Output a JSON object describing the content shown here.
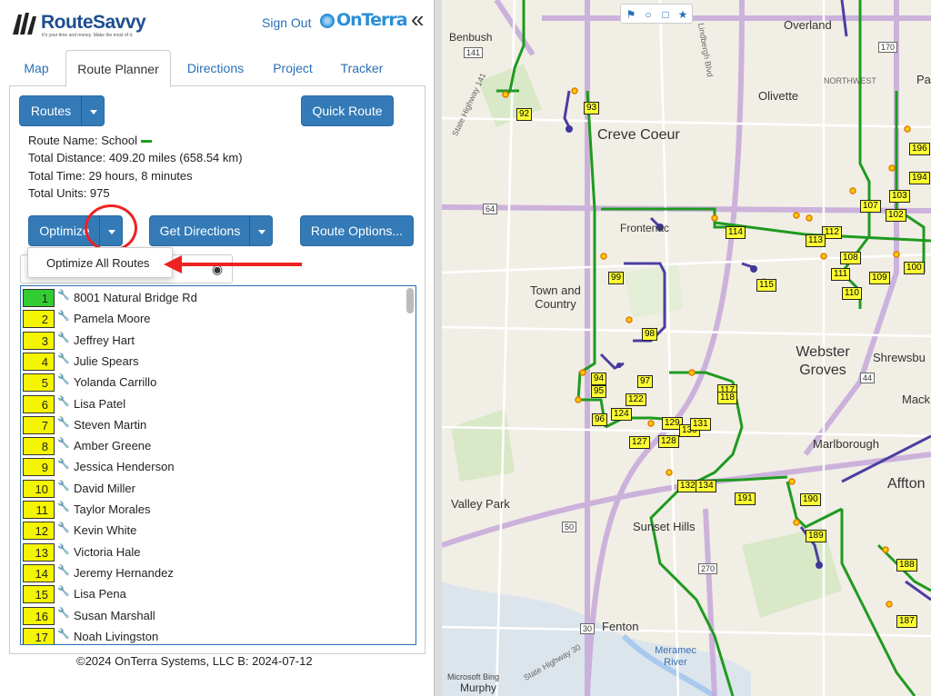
{
  "header": {
    "logo_text": "RouteSavvy",
    "logo_tagline": "It's your time and money. Make the most of it.",
    "signout_label": "Sign Out",
    "partner_logo": "OnTerra",
    "collapse_icon": "«"
  },
  "tabs": [
    {
      "label": "Map"
    },
    {
      "label": "Route Planner"
    },
    {
      "label": "Directions"
    },
    {
      "label": "Project"
    },
    {
      "label": "Tracker"
    }
  ],
  "active_tab": "Route Planner",
  "toolbar": {
    "routes_label": "Routes",
    "quick_route_label": "Quick Route",
    "optimize_label": "Optimize",
    "get_directions_label": "Get Directions",
    "route_options_label": "Route Options..."
  },
  "route_info": {
    "name": "Route Name: School",
    "distance": "Total Distance: 409.20 miles (658.54 km)",
    "time": "Total Time: 29 hours, 8 minutes",
    "units": "Total Units: 975",
    "route_color": "#1a9e1a"
  },
  "optimize_menu": {
    "items": [
      "Optimize All Routes"
    ]
  },
  "stops": [
    {
      "num": "1",
      "name": "8001 Natural Bridge Rd",
      "start": true
    },
    {
      "num": "2",
      "name": "Pamela Moore"
    },
    {
      "num": "3",
      "name": "Jeffrey Hart"
    },
    {
      "num": "4",
      "name": "Julie Spears"
    },
    {
      "num": "5",
      "name": "Yolanda Carrillo"
    },
    {
      "num": "6",
      "name": "Lisa Patel"
    },
    {
      "num": "7",
      "name": "Steven Martin"
    },
    {
      "num": "8",
      "name": "Amber Greene"
    },
    {
      "num": "9",
      "name": "Jessica Henderson"
    },
    {
      "num": "10",
      "name": "David Miller"
    },
    {
      "num": "11",
      "name": "Taylor Morales"
    },
    {
      "num": "12",
      "name": "Kevin White"
    },
    {
      "num": "13",
      "name": "Victoria Hale"
    },
    {
      "num": "14",
      "name": "Jeremy Hernandez"
    },
    {
      "num": "15",
      "name": "Lisa Pena"
    },
    {
      "num": "16",
      "name": "Susan Marshall"
    },
    {
      "num": "17",
      "name": "Noah Livingston"
    }
  ],
  "footer": "©2024 OnTerra Systems, LLC B: 2024-07-12",
  "map": {
    "places": [
      "Benbush",
      "Overland",
      "Olivette",
      "NORTHWEST",
      "Creve Coeur",
      "Frontenac",
      "Town and Country",
      "Webster Groves",
      "Shrewsbu",
      "Mack",
      "Marlborough",
      "Affton",
      "Valley Park",
      "Sunset Hills",
      "Fenton",
      "Meramec River",
      "Murphy",
      "Pa"
    ],
    "roads": [
      "141",
      "64",
      "170",
      "44",
      "50",
      "270",
      "30",
      "State Highway 141",
      "Lindbergh Blvd",
      "State Highway 30"
    ],
    "stop_labels": [
      "92",
      "93",
      "99",
      "98",
      "94",
      "95",
      "96",
      "97",
      "122",
      "124",
      "127",
      "128",
      "129",
      "130",
      "131",
      "132",
      "134",
      "191",
      "190",
      "189",
      "188",
      "187",
      "114",
      "115",
      "112",
      "113",
      "108",
      "111",
      "110",
      "109",
      "100",
      "107",
      "102",
      "103",
      "196",
      "194",
      "117",
      "118"
    ],
    "attribution": "Microsoft Bing"
  }
}
